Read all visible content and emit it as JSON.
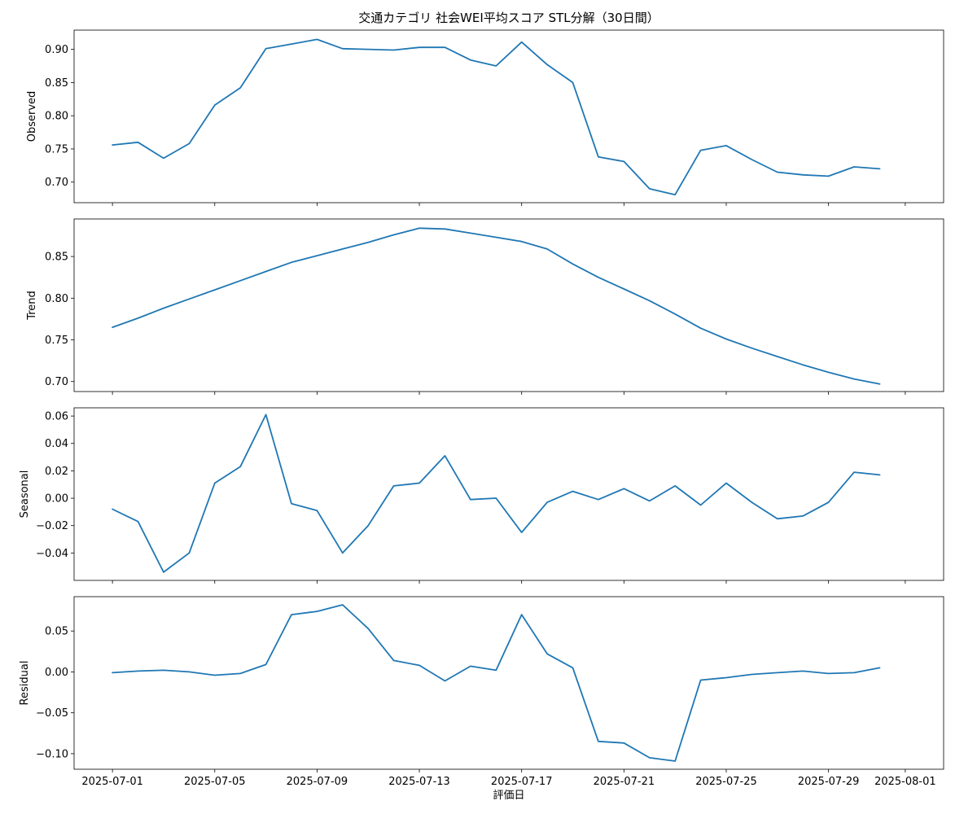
{
  "colors": {
    "series": "#1f77b4"
  },
  "chart_data": {
    "type": "line",
    "title": "交通カテゴリ 社会WEI平均スコア STL分解（30日間）",
    "xlabel": "評価日",
    "x_ticks": [
      "2025-07-01",
      "2025-07-05",
      "2025-07-09",
      "2025-07-13",
      "2025-07-17",
      "2025-07-21",
      "2025-07-25",
      "2025-07-29",
      "2025-08-01"
    ],
    "x": [
      "2025-07-01",
      "2025-07-02",
      "2025-07-03",
      "2025-07-04",
      "2025-07-05",
      "2025-07-06",
      "2025-07-07",
      "2025-07-08",
      "2025-07-09",
      "2025-07-10",
      "2025-07-11",
      "2025-07-12",
      "2025-07-13",
      "2025-07-14",
      "2025-07-15",
      "2025-07-16",
      "2025-07-17",
      "2025-07-18",
      "2025-07-19",
      "2025-07-20",
      "2025-07-21",
      "2025-07-22",
      "2025-07-23",
      "2025-07-24",
      "2025-07-25",
      "2025-07-26",
      "2025-07-27",
      "2025-07-28",
      "2025-07-29",
      "2025-07-30",
      "2025-07-31"
    ],
    "xlim": [
      "2025-06-29.5",
      "2025-08-02.5"
    ],
    "panels": [
      {
        "ylabel": "Observed",
        "ylim": [
          0.669,
          0.929
        ],
        "yticks": [
          0.7,
          0.75,
          0.8,
          0.85,
          0.9
        ],
        "ytick_labels": [
          "0.70",
          "0.75",
          "0.80",
          "0.85",
          "0.90"
        ],
        "values": [
          0.756,
          0.76,
          0.736,
          0.758,
          0.816,
          0.842,
          0.901,
          0.908,
          0.915,
          0.901,
          0.9,
          0.899,
          0.903,
          0.903,
          0.884,
          0.875,
          0.911,
          0.877,
          0.85,
          0.738,
          0.731,
          0.69,
          0.681,
          0.748,
          0.755,
          0.734,
          0.715,
          0.711,
          0.709,
          0.723,
          0.72
        ]
      },
      {
        "ylabel": "Trend",
        "ylim": [
          0.688,
          0.895
        ],
        "yticks": [
          0.7,
          0.75,
          0.8,
          0.85
        ],
        "ytick_labels": [
          "0.70",
          "0.75",
          "0.80",
          "0.85"
        ],
        "values": [
          0.765,
          0.776,
          0.788,
          0.799,
          0.81,
          0.821,
          0.832,
          0.843,
          0.851,
          0.859,
          0.867,
          0.876,
          0.884,
          0.883,
          0.878,
          0.873,
          0.868,
          0.859,
          0.841,
          0.825,
          0.811,
          0.797,
          0.781,
          0.764,
          0.751,
          0.74,
          0.73,
          0.72,
          0.711,
          0.703,
          0.697
        ]
      },
      {
        "ylabel": "Seasonal",
        "ylim": [
          -0.06,
          0.066
        ],
        "yticks": [
          -0.04,
          -0.02,
          0.0,
          0.02,
          0.04,
          0.06
        ],
        "ytick_labels": [
          "−0.04",
          "−0.02",
          "0.00",
          "0.02",
          "0.04",
          "0.06"
        ],
        "values": [
          -0.008,
          -0.017,
          -0.054,
          -0.04,
          0.011,
          0.023,
          0.061,
          -0.004,
          -0.009,
          -0.04,
          -0.02,
          0.009,
          0.011,
          0.031,
          -0.001,
          0.0,
          -0.025,
          -0.003,
          0.005,
          -0.001,
          0.007,
          -0.002,
          0.009,
          -0.005,
          0.011,
          -0.003,
          -0.015,
          -0.013,
          -0.003,
          0.019,
          0.017
        ]
      },
      {
        "ylabel": "Residual",
        "ylim": [
          -0.119,
          0.092
        ],
        "yticks": [
          -0.1,
          -0.05,
          0.0,
          0.05
        ],
        "ytick_labels": [
          "−0.10",
          "−0.05",
          "0.00",
          "0.05"
        ],
        "values": [
          -0.001,
          0.001,
          0.002,
          0.0,
          -0.004,
          -0.002,
          0.009,
          0.07,
          0.074,
          0.082,
          0.053,
          0.014,
          0.008,
          -0.011,
          0.007,
          0.002,
          0.07,
          0.022,
          0.005,
          -0.085,
          -0.087,
          -0.105,
          -0.109,
          -0.01,
          -0.007,
          -0.003,
          -0.001,
          0.001,
          -0.002,
          -0.001,
          0.005
        ]
      }
    ]
  }
}
